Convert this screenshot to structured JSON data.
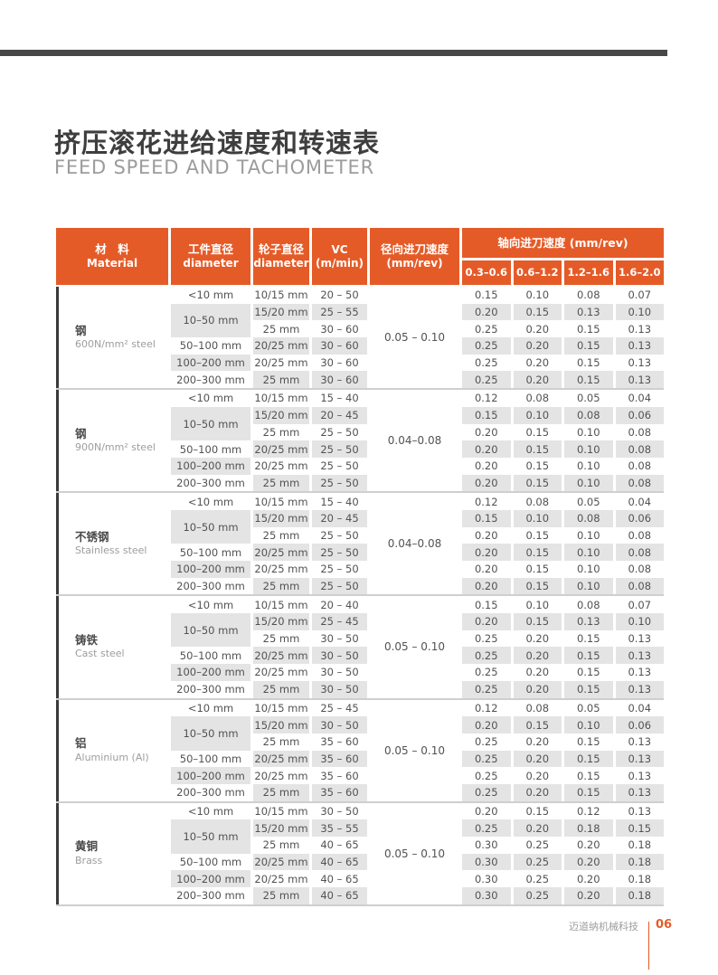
{
  "page": {
    "title_zh": "挤压滚花进给速度和转速表",
    "title_en": "FEED SPEED AND TACHOMETER",
    "footer": {
      "company": "迈道纳机械科技",
      "page_number": "06"
    }
  },
  "colors": {
    "accent_orange": "#E55B28",
    "top_rule_gray": "#474747",
    "row_shade_gray": "#E4E4E5",
    "material_bar_dark": "#3A3A3A"
  },
  "table": {
    "header": {
      "material_zh": "材　料",
      "material_en": "Material",
      "workpiece_zh": "工件直径",
      "workpiece_en": "diameter",
      "wheel_zh": "轮子直径",
      "wheel_en": "diameter",
      "vc_line1": "VC",
      "vc_line2": "(m/min)",
      "radial_line1": "径向进刀速度",
      "radial_line2": "(mm/rev)",
      "axial_label": "轴向进刀速度 (mm/rev)",
      "axial_ranges": [
        "0.3–0.6",
        "0.6–1.2",
        "1.2–1.6",
        "1.6–2.0"
      ]
    },
    "groups": [
      {
        "name_zh": "钢",
        "name_en": "600N/mm² steel",
        "radial": "0.05 – 0.10",
        "rows": [
          {
            "wp": "<10 mm",
            "wheel": "10/15 mm",
            "vc": "20 – 50",
            "ax": [
              "0.15",
              "0.10",
              "0.08",
              "0.07"
            ]
          },
          {
            "wp": "10–50 mm",
            "wp_span": 2,
            "wheel": "15/20 mm",
            "vc": "25 – 55",
            "ax": [
              "0.20",
              "0.15",
              "0.13",
              "0.10"
            ]
          },
          {
            "wp": null,
            "wheel": "25 mm",
            "vc": "30 – 60",
            "ax": [
              "0.25",
              "0.20",
              "0.15",
              "0.13"
            ]
          },
          {
            "wp": "50–100 mm",
            "wheel": "20/25 mm",
            "vc": "30 – 60",
            "ax": [
              "0.25",
              "0.20",
              "0.15",
              "0.13"
            ]
          },
          {
            "wp": "100–200 mm",
            "wheel": "20/25 mm",
            "vc": "30 – 60",
            "ax": [
              "0.25",
              "0.20",
              "0.15",
              "0.13"
            ]
          },
          {
            "wp": "200–300 mm",
            "wheel": "25 mm",
            "vc": "30 – 60",
            "ax": [
              "0.25",
              "0.20",
              "0.15",
              "0.13"
            ]
          }
        ]
      },
      {
        "name_zh": "钢",
        "name_en": "900N/mm² steel",
        "radial": "0.04–0.08",
        "rows": [
          {
            "wp": "<10 mm",
            "wheel": "10/15 mm",
            "vc": "15 – 40",
            "ax": [
              "0.12",
              "0.08",
              "0.05",
              "0.04"
            ]
          },
          {
            "wp": "10–50 mm",
            "wp_span": 2,
            "wheel": "15/20 mm",
            "vc": "20 – 45",
            "ax": [
              "0.15",
              "0.10",
              "0.08",
              "0.06"
            ]
          },
          {
            "wp": null,
            "wheel": "25 mm",
            "vc": "25 – 50",
            "ax": [
              "0.20",
              "0.15",
              "0.10",
              "0.08"
            ]
          },
          {
            "wp": "50–100 mm",
            "wheel": "20/25 mm",
            "vc": "25 – 50",
            "ax": [
              "0.20",
              "0.15",
              "0.10",
              "0.08"
            ]
          },
          {
            "wp": "100–200 mm",
            "wheel": "20/25 mm",
            "vc": "25 – 50",
            "ax": [
              "0.20",
              "0.15",
              "0.10",
              "0.08"
            ]
          },
          {
            "wp": "200–300 mm",
            "wheel": "25 mm",
            "vc": "25 – 50",
            "ax": [
              "0.20",
              "0.15",
              "0.10",
              "0.08"
            ]
          }
        ]
      },
      {
        "name_zh": "不锈钢",
        "name_en": "Stainless steel",
        "radial": "0.04–0.08",
        "rows": [
          {
            "wp": "<10 mm",
            "wheel": "10/15 mm",
            "vc": "15 – 40",
            "ax": [
              "0.12",
              "0.08",
              "0.05",
              "0.04"
            ]
          },
          {
            "wp": "10–50 mm",
            "wp_span": 2,
            "wheel": "15/20 mm",
            "vc": "20 – 45",
            "ax": [
              "0.15",
              "0.10",
              "0.08",
              "0.06"
            ]
          },
          {
            "wp": null,
            "wheel": "25 mm",
            "vc": "25 – 50",
            "ax": [
              "0.20",
              "0.15",
              "0.10",
              "0.08"
            ]
          },
          {
            "wp": "50–100 mm",
            "wheel": "20/25 mm",
            "vc": "25 – 50",
            "ax": [
              "0.20",
              "0.15",
              "0.10",
              "0.08"
            ]
          },
          {
            "wp": "100–200 mm",
            "wheel": "20/25 mm",
            "vc": "25 – 50",
            "ax": [
              "0.20",
              "0.15",
              "0.10",
              "0.08"
            ]
          },
          {
            "wp": "200–300 mm",
            "wheel": "25 mm",
            "vc": "25 – 50",
            "ax": [
              "0.20",
              "0.15",
              "0.10",
              "0.08"
            ]
          }
        ]
      },
      {
        "name_zh": "铸铁",
        "name_en": "Cast steel",
        "radial": "0.05 – 0.10",
        "rows": [
          {
            "wp": "<10 mm",
            "wheel": "10/15 mm",
            "vc": "20 – 40",
            "ax": [
              "0.15",
              "0.10",
              "0.08",
              "0.07"
            ]
          },
          {
            "wp": "10–50 mm",
            "wp_span": 2,
            "wheel": "15/20 mm",
            "vc": "25 – 45",
            "ax": [
              "0.20",
              "0.15",
              "0.13",
              "0.10"
            ]
          },
          {
            "wp": null,
            "wheel": "25 mm",
            "vc": "30 – 50",
            "ax": [
              "0.25",
              "0.20",
              "0.15",
              "0.13"
            ]
          },
          {
            "wp": "50–100 mm",
            "wheel": "20/25 mm",
            "vc": "30 – 50",
            "ax": [
              "0.25",
              "0.20",
              "0.15",
              "0.13"
            ]
          },
          {
            "wp": "100–200 mm",
            "wheel": "20/25 mm",
            "vc": "30 – 50",
            "ax": [
              "0.25",
              "0.20",
              "0.15",
              "0.13"
            ]
          },
          {
            "wp": "200–300 mm",
            "wheel": "25 mm",
            "vc": "30 – 50",
            "ax": [
              "0.25",
              "0.20",
              "0.15",
              "0.13"
            ]
          }
        ]
      },
      {
        "name_zh": "铝",
        "name_en": "Aluminium (Al)",
        "radial": "0.05 – 0.10",
        "rows": [
          {
            "wp": "<10 mm",
            "wheel": "10/15 mm",
            "vc": "25 – 45",
            "ax": [
              "0.12",
              "0.08",
              "0.05",
              "0.04"
            ]
          },
          {
            "wp": "10–50 mm",
            "wp_span": 2,
            "wheel": "15/20 mm",
            "vc": "30 – 50",
            "ax": [
              "0.20",
              "0.15",
              "0.10",
              "0.06"
            ]
          },
          {
            "wp": null,
            "wheel": "25 mm",
            "vc": "35 – 60",
            "ax": [
              "0.25",
              "0.20",
              "0.15",
              "0.13"
            ]
          },
          {
            "wp": "50–100 mm",
            "wheel": "20/25 mm",
            "vc": "35 – 60",
            "ax": [
              "0.25",
              "0.20",
              "0.15",
              "0.13"
            ]
          },
          {
            "wp": "100–200 mm",
            "wheel": "20/25 mm",
            "vc": "35 – 60",
            "ax": [
              "0.25",
              "0.20",
              "0.15",
              "0.13"
            ]
          },
          {
            "wp": "200–300 mm",
            "wheel": "25 mm",
            "vc": "35 – 60",
            "ax": [
              "0.25",
              "0.20",
              "0.15",
              "0.13"
            ]
          }
        ]
      },
      {
        "name_zh": "黄铜",
        "name_en": "Brass",
        "radial": "0.05 – 0.10",
        "rows": [
          {
            "wp": "<10 mm",
            "wheel": "10/15 mm",
            "vc": "30 – 50",
            "ax": [
              "0.20",
              "0.15",
              "0.12",
              "0.13"
            ]
          },
          {
            "wp": "10–50 mm",
            "wp_span": 2,
            "wheel": "15/20 mm",
            "vc": "35 – 55",
            "ax": [
              "0.25",
              "0.20",
              "0.18",
              "0.15"
            ]
          },
          {
            "wp": null,
            "wheel": "25 mm",
            "vc": "40 – 65",
            "ax": [
              "0.30",
              "0.25",
              "0.20",
              "0.18"
            ]
          },
          {
            "wp": "50–100 mm",
            "wheel": "20/25 mm",
            "vc": "40 – 65",
            "ax": [
              "0.30",
              "0.25",
              "0.20",
              "0.18"
            ]
          },
          {
            "wp": "100–200 mm",
            "wheel": "20/25 mm",
            "vc": "40 – 65",
            "ax": [
              "0.30",
              "0.25",
              "0.20",
              "0.18"
            ]
          },
          {
            "wp": "200–300 mm",
            "wheel": "25 mm",
            "vc": "40 – 65",
            "ax": [
              "0.30",
              "0.25",
              "0.20",
              "0.18"
            ]
          }
        ]
      }
    ]
  }
}
